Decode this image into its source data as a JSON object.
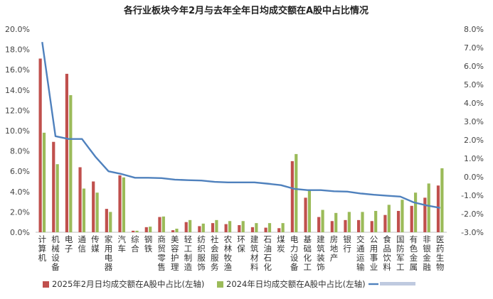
{
  "chart_data": {
    "type": "bar",
    "title": "各行业板块今年2月与去年全年日均成交额在A股中占比情况",
    "categories": [
      "计算机",
      "机械设备",
      "电子",
      "通信",
      "传媒",
      "家用电器",
      "汽车",
      "综合",
      "钢铁",
      "商贸零售",
      "美容护理",
      "轻工制造",
      "纺织服饰",
      "社会服务",
      "农林牧渔",
      "环保",
      "建筑材料",
      "石油石化",
      "煤炭",
      "电力设备",
      "基础化工",
      "建筑装饰",
      "房地产",
      "银行",
      "交通运输",
      "公用事业",
      "食品饮料",
      "国防军工",
      "有色金属",
      "非银金融",
      "医药生物"
    ],
    "series": [
      {
        "name": "2025年2月日均成交额在A股中占比(左轴)",
        "axis": "left",
        "color": "#c0504d",
        "values": [
          17.1,
          8.9,
          15.6,
          6.4,
          5.0,
          2.3,
          5.6,
          0.15,
          0.5,
          1.5,
          0.2,
          1.0,
          0.6,
          0.9,
          0.8,
          0.7,
          0.5,
          0.45,
          0.4,
          7.0,
          3.4,
          1.5,
          1.1,
          1.2,
          1.2,
          1.1,
          1.7,
          2.1,
          2.6,
          3.4,
          4.6
        ]
      },
      {
        "name": "2024年日均成交额在A股中占比(左轴)",
        "axis": "left",
        "color": "#9bbb59",
        "values": [
          9.8,
          6.7,
          13.5,
          4.3,
          3.9,
          2.0,
          5.4,
          0.15,
          0.55,
          1.55,
          0.35,
          1.2,
          0.85,
          1.2,
          1.1,
          1.1,
          0.9,
          0.9,
          0.9,
          7.7,
          4.1,
          2.2,
          1.9,
          2.0,
          2.0,
          2.1,
          2.7,
          3.2,
          3.9,
          4.8,
          6.3
        ]
      },
      {
        "axis": "right",
        "color": "#4f81bd",
        "type": "line",
        "values": [
          7.3,
          2.2,
          2.05,
          2.05,
          1.1,
          0.3,
          0.15,
          -0.05,
          -0.05,
          -0.07,
          -0.15,
          -0.18,
          -0.2,
          -0.27,
          -0.3,
          -0.3,
          -0.3,
          -0.37,
          -0.45,
          -0.65,
          -0.72,
          -0.72,
          -0.78,
          -0.8,
          -0.9,
          -0.97,
          -1.02,
          -1.07,
          -1.38,
          -1.55,
          -1.68
        ]
      }
    ],
    "left_axis": {
      "ylim": [
        0,
        20
      ],
      "ticks": [
        "0.0%",
        "2.0%",
        "4.0%",
        "6.0%",
        "8.0%",
        "10.0%",
        "12.0%",
        "14.0%",
        "16.0%",
        "18.0%",
        "20.0%"
      ]
    },
    "right_axis": {
      "ylim": [
        -3,
        8
      ],
      "ticks": [
        "-3.0%",
        "-2.0%",
        "-1.0%",
        "0.0%",
        "1.0%",
        "2.0%",
        "3.0%",
        "4.0%",
        "5.0%",
        "6.0%",
        "7.0%",
        "8.0%"
      ]
    },
    "legend_position": "bottom",
    "grid": false
  }
}
